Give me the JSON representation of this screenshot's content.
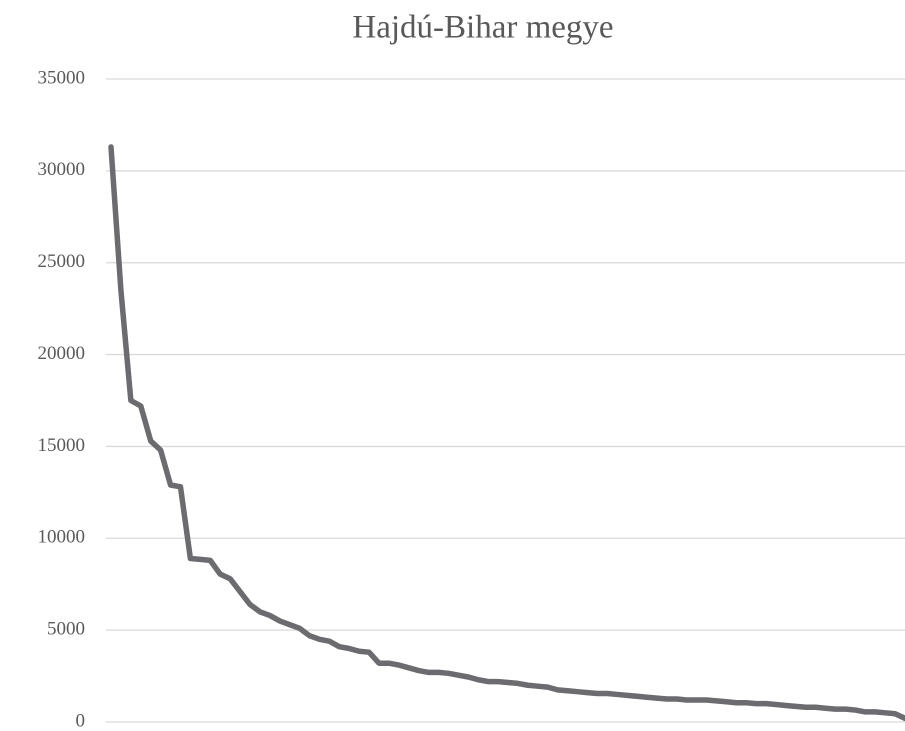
{
  "chart_data": {
    "type": "line",
    "title": "Hajdú-Bihar megye",
    "categories": [
      null,
      null,
      null,
      null,
      null,
      null,
      null,
      null,
      null,
      null,
      null,
      null,
      null,
      null,
      null,
      null,
      null,
      null,
      null,
      null,
      null,
      null,
      null,
      null,
      null,
      null,
      null,
      null,
      null,
      null,
      null,
      null,
      null,
      null,
      null,
      null,
      null,
      null,
      null,
      null,
      null,
      null,
      null,
      null,
      null,
      null,
      null,
      null,
      null,
      null,
      null,
      null,
      null,
      null,
      null,
      null,
      null,
      null,
      null,
      null,
      null,
      null,
      null,
      null,
      null,
      null,
      null,
      null,
      null,
      null,
      null,
      null,
      null,
      null,
      null,
      null,
      null,
      null,
      null,
      null,
      null
    ],
    "series": [
      {
        "name": null,
        "color": "#6b6b70",
        "values": [
          31300,
          23500,
          17500,
          17200,
          15300,
          14800,
          12900,
          12800,
          8900,
          8850,
          8800,
          8050,
          7800,
          7100,
          6400,
          6000,
          5800,
          5500,
          5300,
          5100,
          4700,
          4500,
          4400,
          4100,
          4000,
          3850,
          3800,
          3200,
          3200,
          3100,
          2950,
          2800,
          2700,
          2700,
          2650,
          2550,
          2450,
          2300,
          2200,
          2200,
          2150,
          2100,
          2000,
          1950,
          1900,
          1750,
          1700,
          1650,
          1600,
          1550,
          1550,
          1500,
          1450,
          1400,
          1350,
          1300,
          1250,
          1250,
          1200,
          1200,
          1200,
          1150,
          1100,
          1050,
          1050,
          1000,
          1000,
          950,
          900,
          850,
          800,
          800,
          750,
          700,
          700,
          650,
          550,
          550,
          500,
          450,
          200
        ]
      }
    ],
    "ylim": [
      0,
      35000
    ],
    "yticks": [
      0,
      5000,
      10000,
      15000,
      20000,
      25000,
      30000,
      35000
    ],
    "grid": true
  }
}
